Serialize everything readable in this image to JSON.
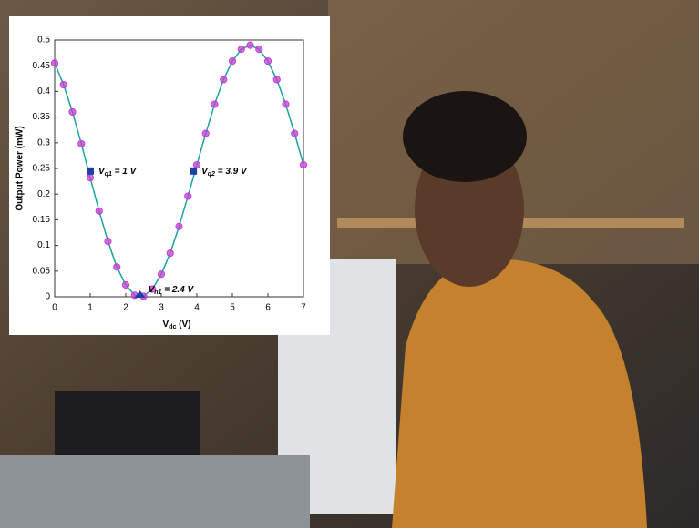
{
  "chart_data": {
    "type": "line",
    "x": [
      0,
      0.25,
      0.5,
      0.75,
      1,
      1.25,
      1.5,
      1.75,
      2,
      2.25,
      2.5,
      2.75,
      3,
      3.25,
      3.5,
      3.75,
      4,
      4.25,
      4.5,
      4.75,
      5,
      5.25,
      5.5,
      5.75,
      6,
      6.25,
      6.5,
      6.75,
      7
    ],
    "series": [
      {
        "color": "#1aa3a0",
        "marker_color": "#c23fd0",
        "values": [
          0.455,
          0.413,
          0.36,
          0.298,
          0.232,
          0.167,
          0.108,
          0.058,
          0.023,
          0.003,
          0.001,
          0.015,
          0.044,
          0.085,
          0.137,
          0.196,
          0.257,
          0.318,
          0.375,
          0.423,
          0.459,
          0.482,
          0.49,
          0.482,
          0.459,
          0.423,
          0.375,
          0.318,
          0.257
        ]
      }
    ],
    "points": [
      {
        "x": 1,
        "y": 0.245,
        "marker": "square",
        "color": "#1f3fa8",
        "label": {
          "main": "V",
          "sub": "q1",
          "rest": " = 1 V"
        }
      },
      {
        "x": 3.9,
        "y": 0.245,
        "marker": "square",
        "color": "#1f3fa8",
        "label": {
          "main": "V",
          "sub": "q2",
          "rest": " = 3.9 V"
        }
      },
      {
        "x": 2.4,
        "y": 0,
        "marker": "triangle",
        "color": "#1f3fa8",
        "label": {
          "main": "V",
          "sub": "n1",
          "rest": " = 2.4 V"
        }
      }
    ],
    "x_label": {
      "main": "V",
      "sub": "dc",
      "rest": " (V)"
    },
    "y_label": "Output Power (mW)",
    "xlim": [
      0,
      7
    ],
    "xticks": [
      0,
      1,
      2,
      3,
      4,
      5,
      6,
      7
    ],
    "ylim": [
      0,
      0.5
    ],
    "yticks": [
      0,
      0.05,
      0.1,
      0.15,
      0.2,
      0.25,
      0.3,
      0.35,
      0.4,
      0.45,
      0.5
    ],
    "grid": false
  }
}
